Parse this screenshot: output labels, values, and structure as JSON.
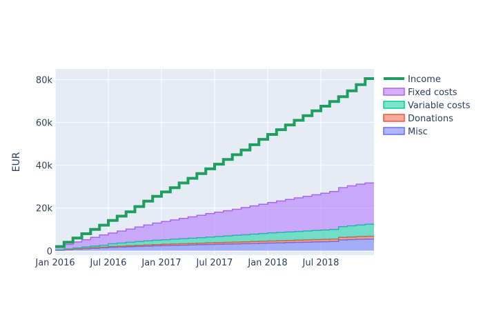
{
  "chart_data": {
    "type": "area",
    "step": true,
    "cumulative": true,
    "x_start": "2016-01",
    "x_end": "2018-12",
    "ylabel": "EUR",
    "ylim": [
      -2000,
      85000
    ],
    "grid": true,
    "legend_position": "right",
    "x_ticks": [
      {
        "date": "2016-01",
        "label": "Jan 2016"
      },
      {
        "date": "2016-07",
        "label": "Jul 2016"
      },
      {
        "date": "2017-01",
        "label": "Jan 2017"
      },
      {
        "date": "2017-07",
        "label": "Jul 2017"
      },
      {
        "date": "2018-01",
        "label": "Jan 2018"
      },
      {
        "date": "2018-07",
        "label": "Jul 2018"
      }
    ],
    "y_ticks": [
      {
        "value": 0,
        "label": "0"
      },
      {
        "value": 20000,
        "label": "20k"
      },
      {
        "value": 40000,
        "label": "40k"
      },
      {
        "value": 60000,
        "label": "60k"
      },
      {
        "value": 80000,
        "label": "80k"
      }
    ],
    "income": {
      "name": "Income",
      "color": "#1f9e5f",
      "values": [
        2000,
        4000,
        6000,
        8000,
        10000,
        12000,
        14200,
        16200,
        18200,
        20700,
        23200,
        25500,
        27500,
        29500,
        31700,
        33900,
        36100,
        38300,
        40500,
        42700,
        44900,
        47100,
        49600,
        52100,
        54400,
        56600,
        58800,
        61000,
        63200,
        65400,
        67600,
        69800,
        72000,
        74800,
        77700,
        80500
      ]
    },
    "stacked_series": [
      {
        "name": "Misc",
        "color": "#636efa",
        "fill": "rgba(99,110,250,0.5)",
        "values": [
          250,
          500,
          750,
          1000,
          1200,
          1400,
          1600,
          1750,
          1900,
          2050,
          2200,
          2350,
          2450,
          2550,
          2650,
          2750,
          2850,
          2950,
          3050,
          3150,
          3250,
          3350,
          3450,
          3550,
          3650,
          3750,
          3850,
          3950,
          4050,
          4150,
          4250,
          4350,
          5100,
          5250,
          5400,
          5500
        ]
      },
      {
        "name": "Donations",
        "color": "#ef553b",
        "fill": "rgba(239,85,59,0.5)",
        "values": [
          50,
          100,
          150,
          200,
          250,
          300,
          420,
          450,
          480,
          510,
          540,
          570,
          600,
          630,
          660,
          690,
          720,
          750,
          780,
          810,
          840,
          870,
          900,
          930,
          960,
          990,
          1020,
          1050,
          1080,
          1110,
          1140,
          1170,
          1200,
          1230,
          1260,
          1290
        ]
      },
      {
        "name": "Variable costs",
        "color": "#00cc96",
        "fill": "rgba(0,204,150,0.5)",
        "values": [
          150,
          300,
          450,
          600,
          750,
          900,
          1300,
          1450,
          1600,
          1750,
          1900,
          2050,
          2150,
          2250,
          2350,
          2450,
          2550,
          2700,
          2850,
          3000,
          3150,
          3300,
          3450,
          3600,
          3750,
          3850,
          3950,
          4050,
          4150,
          4250,
          4350,
          4500,
          5000,
          5200,
          5400,
          5600
        ]
      },
      {
        "name": "Fixed costs",
        "color": "#ab63fa",
        "fill": "rgba(171,99,250,0.5)",
        "values": [
          1400,
          2100,
          2800,
          3400,
          4100,
          4800,
          5000,
          5600,
          6200,
          6800,
          7400,
          8000,
          8500,
          9000,
          9500,
          10000,
          10500,
          11000,
          11400,
          11800,
          12200,
          12700,
          13200,
          13700,
          14200,
          14700,
          15200,
          15700,
          16200,
          16700,
          17200,
          17700,
          18200,
          18700,
          19100,
          19300
        ]
      }
    ],
    "legend": [
      {
        "name": "Income",
        "color": "#1f9e5f",
        "kind": "line"
      },
      {
        "name": "Fixed costs",
        "color": "#ab63fa",
        "kind": "area"
      },
      {
        "name": "Variable costs",
        "color": "#00cc96",
        "kind": "area"
      },
      {
        "name": "Donations",
        "color": "#ef553b",
        "kind": "area"
      },
      {
        "name": "Misc",
        "color": "#636efa",
        "kind": "area"
      }
    ]
  }
}
